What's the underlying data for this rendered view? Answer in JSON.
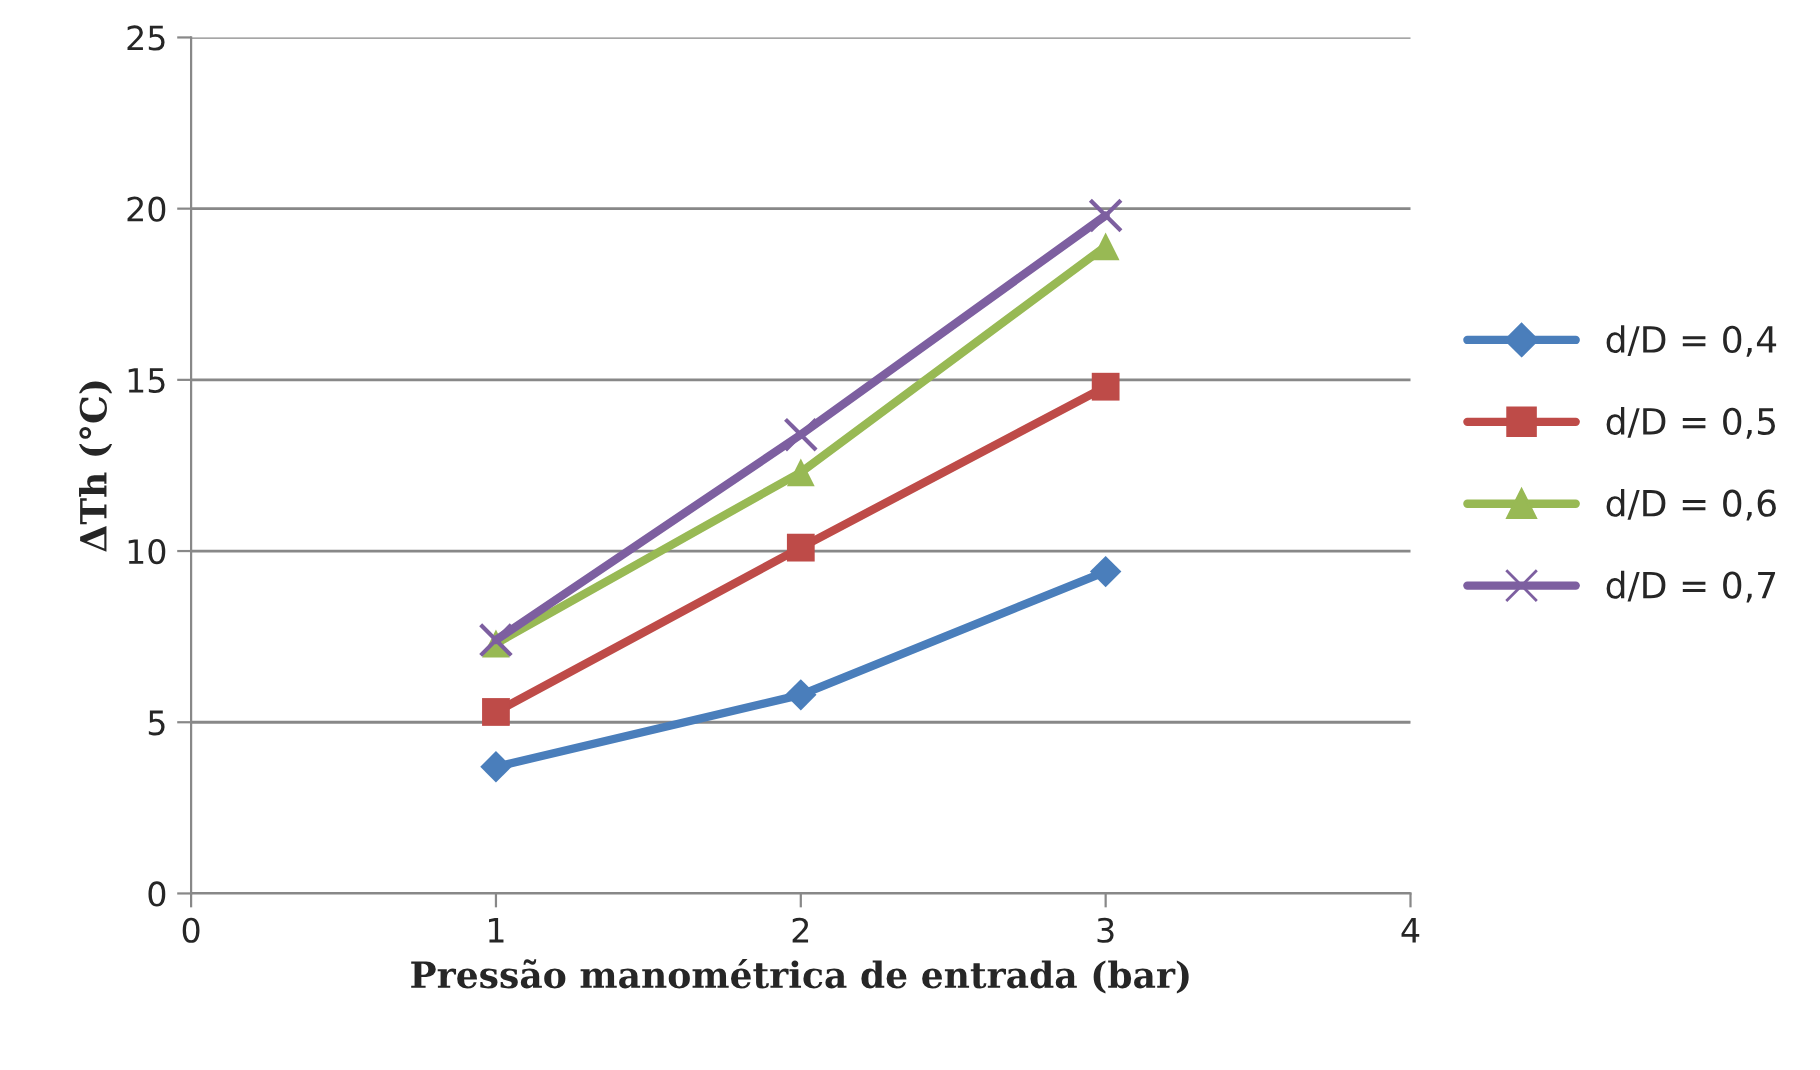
{
  "chart_data": {
    "type": "line",
    "xlabel": "Pressão manométrica de entrada (bar)",
    "ylabel": "ΔTh (°C)",
    "xlim": [
      0,
      4
    ],
    "xticks": [
      0,
      1,
      2,
      3,
      4
    ],
    "ylim": [
      0,
      25
    ],
    "yticks": [
      0,
      5,
      10,
      15,
      20,
      25
    ],
    "grid": "y",
    "legend": "right",
    "line_style": "solid",
    "series": [
      {
        "name": "d/D = 0,4",
        "color": "#4a7ebb",
        "marker": "diamond",
        "x": [
          1,
          2,
          3
        ],
        "values": [
          3.7,
          5.8,
          9.4
        ]
      },
      {
        "name": "d/D = 0,5",
        "color": "#be4b48",
        "marker": "square",
        "x": [
          1,
          2,
          3
        ],
        "values": [
          5.3,
          10.1,
          14.8
        ]
      },
      {
        "name": "d/D = 0,6",
        "color": "#98b954",
        "marker": "triangle",
        "x": [
          1,
          2,
          3
        ],
        "values": [
          7.3,
          12.3,
          18.9
        ]
      },
      {
        "name": "d/D = 0,7",
        "color": "#7d5fa0",
        "marker": "cross",
        "x": [
          1,
          2,
          3
        ],
        "values": [
          7.4,
          13.4,
          19.8
        ]
      }
    ]
  }
}
